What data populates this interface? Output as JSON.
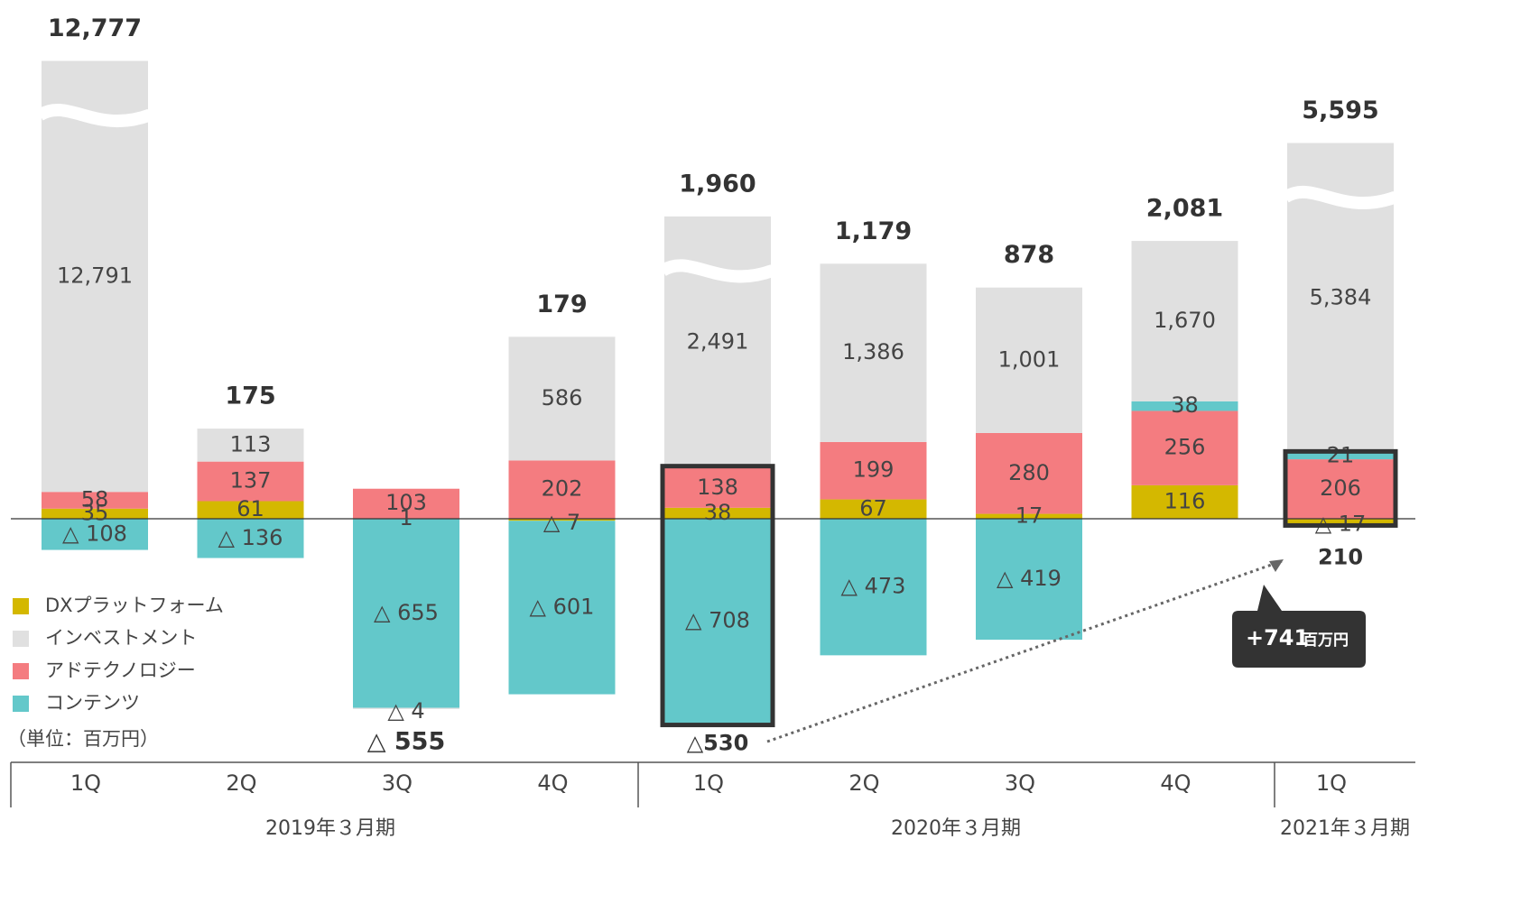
{
  "chart_data": {
    "type": "stacked_bar",
    "unit_note": "（単位：百万円）",
    "categories": [
      "1Q",
      "2Q",
      "3Q",
      "4Q",
      "1Q",
      "2Q",
      "3Q",
      "4Q",
      "1Q"
    ],
    "periods": [
      "2019年３月期",
      "2020年３月期",
      "2021年３月期"
    ],
    "series": [
      {
        "name": "DXプラットフォーム",
        "color": "#d4b800",
        "values": [
          35,
          61,
          1,
          -7,
          38,
          67,
          17,
          116,
          -17
        ],
        "value_labels": [
          "35",
          "61",
          "1",
          "△ 7",
          "38",
          "67",
          "17",
          "116",
          "△ 17"
        ]
      },
      {
        "name": "アドテクノロジー",
        "color": "#f47c80",
        "values": [
          58,
          137,
          103,
          202,
          138,
          199,
          280,
          256,
          206
        ],
        "value_labels": [
          "58",
          "137",
          "103",
          "202",
          "138",
          "199",
          "280",
          "256",
          "206"
        ]
      },
      {
        "name": "コンテンツ",
        "color": "#63c8ca",
        "values": [
          -108,
          -136,
          -655,
          -601,
          -708,
          -473,
          -419,
          38,
          21
        ],
        "value_labels": [
          "△ 108",
          "△ 136",
          "△ 655",
          "△ 601",
          "△ 708",
          "△ 473",
          "△ 419",
          "38",
          "21"
        ]
      },
      {
        "name": "インベストメント",
        "color": "#e0e0e0",
        "values": [
          12791,
          113,
          -4,
          586,
          2491,
          1386,
          1001,
          1670,
          5384
        ],
        "value_labels": [
          "12,791",
          "113",
          "△ 4",
          "586",
          "2,491",
          "1,386",
          "1,001",
          "1,670",
          "5,384"
        ]
      }
    ],
    "legend_order": [
      0,
      3,
      1,
      2
    ],
    "broken": [
      true,
      false,
      false,
      false,
      true,
      false,
      false,
      false,
      true
    ],
    "totals": {
      "values": [
        12777,
        175,
        -555,
        179,
        1960,
        1179,
        878,
        2081,
        5595
      ],
      "value_labels": [
        "12,777",
        "175",
        "△ 555",
        "179",
        "1,960",
        "1,179",
        "878",
        "2,081",
        "5,595"
      ]
    },
    "subtotals": {
      "values": [
        null,
        null,
        null,
        null,
        -530,
        null,
        null,
        null,
        210
      ],
      "value_labels": [
        null,
        null,
        null,
        null,
        "△530",
        null,
        null,
        null,
        "210"
      ]
    },
    "change_label": "+741",
    "change_unit": "百万円"
  }
}
